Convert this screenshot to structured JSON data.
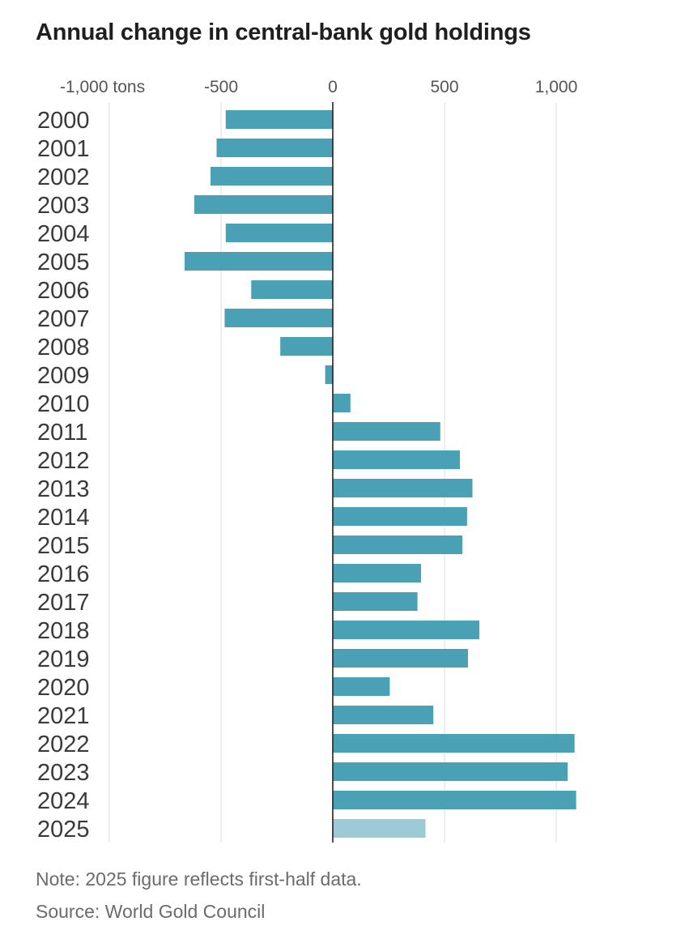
{
  "chart_data": {
    "type": "bar",
    "orientation": "horizontal",
    "title": "Annual change in central-bank gold holdings",
    "xlabel": "",
    "ylabel": "",
    "unit": "tons",
    "xlim": [
      -1000,
      1000
    ],
    "xticks": [
      {
        "value": -1000,
        "label": "-1,000 tons"
      },
      {
        "value": -500,
        "label": "-500"
      },
      {
        "value": 0,
        "label": "0"
      },
      {
        "value": 500,
        "label": "500"
      },
      {
        "value": 1000,
        "label": "1,000"
      }
    ],
    "categories": [
      "2000",
      "2001",
      "2002",
      "2003",
      "2004",
      "2005",
      "2006",
      "2007",
      "2008",
      "2009",
      "2010",
      "2011",
      "2012",
      "2013",
      "2014",
      "2015",
      "2016",
      "2017",
      "2018",
      "2019",
      "2020",
      "2021",
      "2022",
      "2023",
      "2024",
      "2025"
    ],
    "values": [
      -479,
      -520,
      -547,
      -620,
      -479,
      -663,
      -365,
      -484,
      -235,
      -34,
      79,
      481,
      569,
      625,
      601,
      580,
      395,
      379,
      656,
      605,
      255,
      450,
      1082,
      1051,
      1089,
      415
    ],
    "highlight": [
      false,
      false,
      false,
      false,
      false,
      false,
      false,
      false,
      false,
      false,
      false,
      false,
      false,
      false,
      false,
      false,
      false,
      false,
      false,
      false,
      false,
      false,
      false,
      false,
      false,
      true
    ],
    "grid": true,
    "legend": "none",
    "colors": {
      "bar": "#4aa0b5",
      "bar_partial": "#9ccbd6",
      "gridline": "#dcdcdc",
      "zero_line": "#222222",
      "title": "#1f1f1f",
      "text": "#3a3a3a",
      "footnote": "#6b6b6b"
    }
  },
  "footnotes": {
    "note": "Note: 2025 figure reflects first-half data.",
    "source": "Source: World Gold Council"
  }
}
